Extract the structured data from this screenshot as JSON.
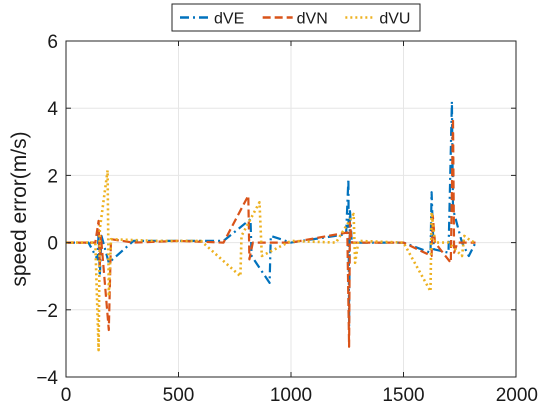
{
  "chart_data": {
    "type": "line",
    "title": "",
    "xlabel": "",
    "ylabel": "speed error(m/s)",
    "xlim": [
      0,
      2000
    ],
    "ylim": [
      -4,
      6
    ],
    "xticks": [
      0,
      500,
      1000,
      1500,
      2000
    ],
    "yticks": [
      -4,
      -2,
      0,
      2,
      4,
      6
    ],
    "grid": true,
    "legend": {
      "position": "top-center",
      "orientation": "horizontal"
    },
    "series": [
      {
        "name": "dVE",
        "color": "#0072BD",
        "dash": "dashdot",
        "points": [
          [
            0,
            0.0
          ],
          [
            100,
            0.0
          ],
          [
            140,
            -0.5
          ],
          [
            145,
            0.3
          ],
          [
            150,
            -1.0
          ],
          [
            158,
            0.2
          ],
          [
            190,
            -0.6
          ],
          [
            300,
            0.05
          ],
          [
            500,
            0.05
          ],
          [
            700,
            0.05
          ],
          [
            820,
            0.7
          ],
          [
            825,
            -0.4
          ],
          [
            905,
            -1.2
          ],
          [
            910,
            0.2
          ],
          [
            1000,
            0.0
          ],
          [
            1245,
            0.25
          ],
          [
            1255,
            1.9
          ],
          [
            1258,
            -2.5
          ],
          [
            1262,
            1.0
          ],
          [
            1270,
            0.0
          ],
          [
            1400,
            0.0
          ],
          [
            1500,
            0.0
          ],
          [
            1620,
            -0.3
          ],
          [
            1625,
            1.5
          ],
          [
            1630,
            0.4
          ],
          [
            1635,
            -0.2
          ],
          [
            1700,
            -0.3
          ],
          [
            1715,
            4.2
          ],
          [
            1720,
            1.0
          ],
          [
            1760,
            0.0
          ],
          [
            1790,
            -0.4
          ],
          [
            1820,
            0.0
          ]
        ]
      },
      {
        "name": "dVN",
        "color": "#D95319",
        "dash": "dashed",
        "points": [
          [
            0,
            0.0
          ],
          [
            130,
            0.0
          ],
          [
            145,
            0.65
          ],
          [
            150,
            -0.7
          ],
          [
            155,
            0.2
          ],
          [
            190,
            -2.6
          ],
          [
            200,
            0.1
          ],
          [
            300,
            0.0
          ],
          [
            500,
            0.05
          ],
          [
            700,
            0.0
          ],
          [
            810,
            1.4
          ],
          [
            815,
            -0.5
          ],
          [
            830,
            0.0
          ],
          [
            1000,
            0.0
          ],
          [
            1250,
            0.3
          ],
          [
            1258,
            -3.1
          ],
          [
            1262,
            0.6
          ],
          [
            1270,
            0.0
          ],
          [
            1500,
            0.0
          ],
          [
            1625,
            -0.4
          ],
          [
            1630,
            0.8
          ],
          [
            1640,
            0.0
          ],
          [
            1710,
            -0.6
          ],
          [
            1720,
            3.7
          ],
          [
            1725,
            -0.3
          ],
          [
            1740,
            0.0
          ],
          [
            1820,
            0.0
          ]
        ]
      },
      {
        "name": "dVU",
        "color": "#EDB120",
        "dash": "dotted",
        "points": [
          [
            0,
            0.0
          ],
          [
            130,
            0.0
          ],
          [
            145,
            -3.2
          ],
          [
            150,
            0.4
          ],
          [
            185,
            2.15
          ],
          [
            190,
            -1.6
          ],
          [
            200,
            0.1
          ],
          [
            400,
            0.05
          ],
          [
            600,
            0.05
          ],
          [
            775,
            -1.0
          ],
          [
            780,
            0.2
          ],
          [
            860,
            1.2
          ],
          [
            870,
            -0.4
          ],
          [
            1000,
            0.05
          ],
          [
            1200,
            0.0
          ],
          [
            1278,
            0.85
          ],
          [
            1285,
            -0.6
          ],
          [
            1300,
            0.05
          ],
          [
            1500,
            0.0
          ],
          [
            1620,
            -1.45
          ],
          [
            1625,
            0.9
          ],
          [
            1640,
            0.0
          ],
          [
            1700,
            0.0
          ],
          [
            1760,
            -0.4
          ],
          [
            1770,
            0.2
          ],
          [
            1800,
            0.05
          ],
          [
            1820,
            0.0
          ]
        ]
      }
    ]
  }
}
